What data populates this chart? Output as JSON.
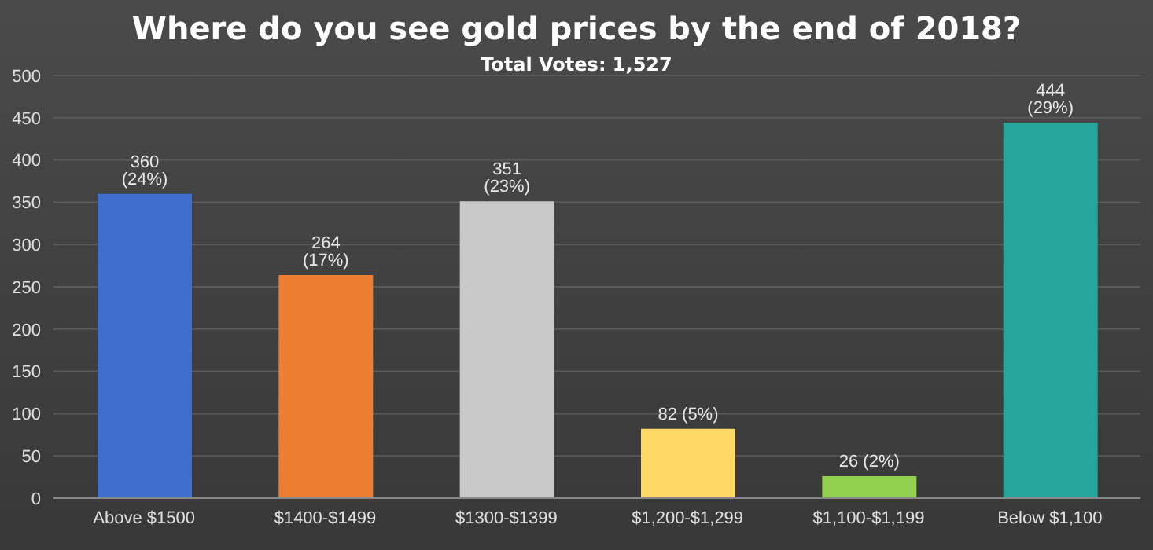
{
  "chart_data": {
    "type": "bar",
    "title": "Where do you see gold prices by the end of 2018?",
    "subtitle": "Total Votes: 1,527",
    "categories": [
      "Above $1500",
      "$1400-$1499",
      "$1300-$1399",
      "$1,200-$1,299",
      "$1,100-$1,199",
      "Below $1,100"
    ],
    "values": [
      360,
      264,
      351,
      82,
      26,
      444
    ],
    "value_labels": [
      "360 (24%)",
      "264 (17%)",
      "351 (23%)",
      "82 (5%)",
      "26 (2%)",
      "444 (29%)"
    ],
    "colors": [
      "#3f6fcc",
      "#ed7d31",
      "#c9c9c9",
      "#ffd966",
      "#92d050",
      "#26a69a"
    ],
    "ylim": [
      0,
      500
    ],
    "yticks": [
      0,
      50,
      100,
      150,
      200,
      250,
      300,
      350,
      400,
      450,
      500
    ],
    "grid": "y"
  }
}
